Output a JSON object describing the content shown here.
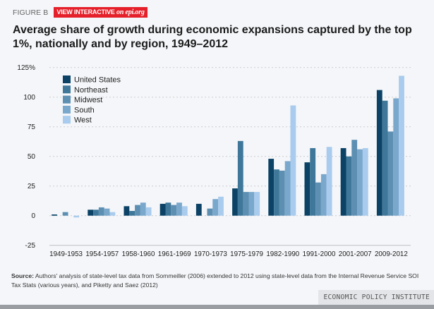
{
  "header": {
    "figure_label": "FIGURE B",
    "badge_text": "VIEW INTERACTIVE",
    "badge_site": "on epi.org",
    "badge_color": "#e5202a"
  },
  "chart_data": {
    "type": "bar",
    "title": "Average share of growth during economic expansions captured by the top 1%, nationally and by region, 1949–2012",
    "xlabel": "",
    "ylabel": "",
    "ylim": [
      -25,
      125
    ],
    "yticks": [
      -25,
      0,
      25,
      50,
      75,
      100,
      125
    ],
    "ytick_labels": [
      "-25",
      "0",
      "25",
      "50",
      "75",
      "100",
      "125%"
    ],
    "grid": true,
    "legend_position": "top-left",
    "categories": [
      "1949-1953",
      "1954-1957",
      "1958-1960",
      "1961-1969",
      "1970-1973",
      "1975-1979",
      "1982-1990",
      "1991-2000",
      "2001-2007",
      "2009-2012"
    ],
    "series": [
      {
        "name": "United States",
        "color": "#0b4266",
        "values": [
          1,
          5,
          8,
          10,
          10,
          23,
          48,
          45,
          57,
          106
        ]
      },
      {
        "name": "Northeast",
        "color": "#3e7799",
        "values": [
          0,
          5,
          4,
          11,
          0,
          63,
          39,
          57,
          50,
          97
        ]
      },
      {
        "name": "Midwest",
        "color": "#5d8fb2",
        "values": [
          3,
          7,
          9,
          9,
          6,
          20,
          38,
          28,
          64,
          71
        ]
      },
      {
        "name": "South",
        "color": "#7aa7cc",
        "values": [
          0,
          6,
          11,
          11,
          14,
          20,
          46,
          35,
          56,
          99
        ]
      },
      {
        "name": "West",
        "color": "#a9cbed",
        "values": [
          -1.5,
          3,
          7,
          8,
          16,
          20,
          93,
          58,
          57,
          118
        ]
      }
    ]
  },
  "footer": {
    "source_label": "Source:",
    "source_text": "Authors' analysis of state-level tax data from Sommeiller (2006) extended to 2012 using state-level data from the Internal Revenue Service SOI Tax Stats (various years), and Piketty and Saez (2012)",
    "publisher": "ECONOMIC POLICY INSTITUTE"
  }
}
